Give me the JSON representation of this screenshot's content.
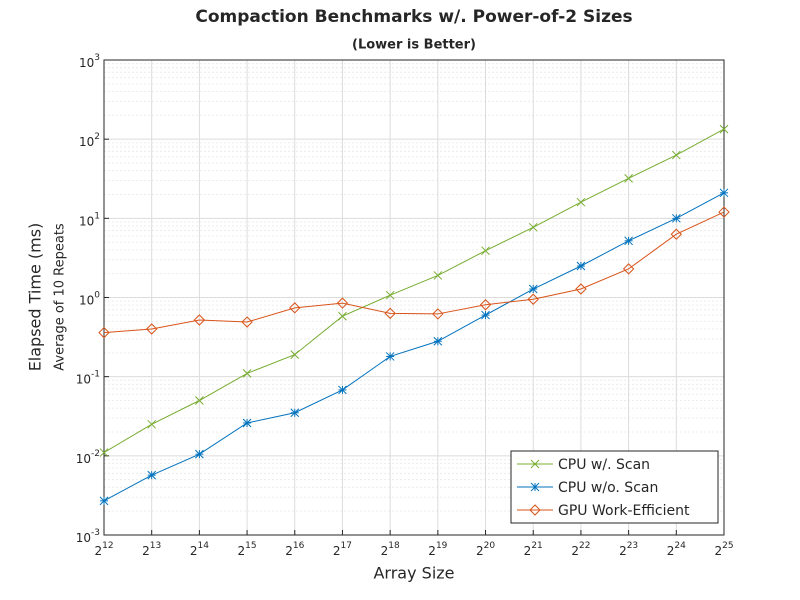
{
  "chart_data": {
    "type": "line",
    "title": "Compaction Benchmarks w/. Power-of-2 Sizes",
    "subtitle": "(Lower is Better)",
    "xlabel": "Array Size",
    "ylabel": "Elapsed Time (ms)",
    "ylabel_sub": "Average of 10 Repeats",
    "xscale": "log",
    "yscale": "log",
    "grid": true,
    "minor_grid": true,
    "legend": "lower-right",
    "x": [
      4096,
      8192,
      16384,
      32768,
      65536,
      131072,
      262144,
      524288,
      1048576,
      2097152,
      4194304,
      8388608,
      16777216,
      33554432
    ],
    "xlim": [
      4096,
      33554432
    ],
    "xticks": [
      {
        "value": 4096,
        "label": "2^12"
      },
      {
        "value": 8192,
        "label": "2^13"
      },
      {
        "value": 16384,
        "label": "2^14"
      },
      {
        "value": 32768,
        "label": "2^15"
      },
      {
        "value": 65536,
        "label": "2^16"
      },
      {
        "value": 131072,
        "label": "2^17"
      },
      {
        "value": 262144,
        "label": "2^18"
      },
      {
        "value": 524288,
        "label": "2^19"
      },
      {
        "value": 1048576,
        "label": "2^20"
      },
      {
        "value": 2097152,
        "label": "2^21"
      },
      {
        "value": 4194304,
        "label": "2^22"
      },
      {
        "value": 8388608,
        "label": "2^23"
      },
      {
        "value": 16777216,
        "label": "2^24"
      },
      {
        "value": 33554432,
        "label": "2^25"
      }
    ],
    "ylim": [
      0.001,
      1000
    ],
    "yticks": [
      {
        "value": 0.001,
        "label": "10^-3"
      },
      {
        "value": 0.01,
        "label": "10^-2"
      },
      {
        "value": 0.1,
        "label": "10^-1"
      },
      {
        "value": 1,
        "label": "10^0"
      },
      {
        "value": 10,
        "label": "10^1"
      },
      {
        "value": 100,
        "label": "10^2"
      },
      {
        "value": 1000,
        "label": "10^3"
      }
    ],
    "series": [
      {
        "name": "CPU w/. Scan",
        "color": "#77ac30",
        "marker": "x",
        "values": [
          0.011,
          0.025,
          0.05,
          0.11,
          0.19,
          0.58,
          1.07,
          1.9,
          3.9,
          7.7,
          16,
          32,
          63,
          134
        ]
      },
      {
        "name": "CPU w/o. Scan",
        "color": "#0072bd",
        "marker": "star",
        "values": [
          0.0027,
          0.0057,
          0.0105,
          0.026,
          0.035,
          0.068,
          0.18,
          0.28,
          0.6,
          1.28,
          2.5,
          5.2,
          10,
          21
        ]
      },
      {
        "name": "GPU Work-Efficient",
        "color": "#d95319",
        "marker": "diamond",
        "values": [
          0.36,
          0.4,
          0.52,
          0.49,
          0.74,
          0.85,
          0.63,
          0.62,
          0.81,
          0.95,
          1.28,
          2.3,
          6.3,
          12
        ]
      }
    ]
  }
}
